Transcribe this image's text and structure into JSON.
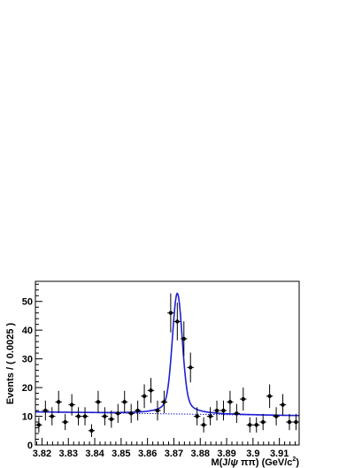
{
  "chart_data": {
    "type": "scatter",
    "title": "",
    "xlabel": "M(J/ψ ππ) (GeV/c²)",
    "xlabel_parts": {
      "prefix": "M(J/",
      "psi": "ψ",
      "pipi": " ππ) (GeV/c",
      "sup": "2",
      "suffix": ")"
    },
    "ylabel": "Events / ( 0.0025 )",
    "xlim": [
      3.8175,
      3.9175
    ],
    "ylim": [
      0,
      57
    ],
    "xticks": [
      3.82,
      3.83,
      3.84,
      3.85,
      3.86,
      3.87,
      3.88,
      3.89,
      3.9,
      3.91
    ],
    "xtick_labels": [
      "3.82",
      "3.83",
      "3.84",
      "3.85",
      "3.86",
      "3.87",
      "3.88",
      "3.89",
      "3.9",
      "3.91"
    ],
    "yticks": [
      0,
      10,
      20,
      30,
      40,
      50
    ],
    "ytick_labels": [
      "0",
      "10",
      "20",
      "30",
      "40",
      "50"
    ],
    "grid": false,
    "colors": {
      "data": "#000000",
      "fit": "#1f1fd6",
      "background": "#1f1fd6",
      "frame": "#000000"
    },
    "series": [
      {
        "kind": "data-points-with-errors",
        "x": [
          3.8188,
          3.8213,
          3.8238,
          3.8263,
          3.8288,
          3.8313,
          3.8338,
          3.8363,
          3.8388,
          3.8413,
          3.8438,
          3.8463,
          3.8488,
          3.8513,
          3.8538,
          3.8563,
          3.8588,
          3.8613,
          3.8638,
          3.8663,
          3.8688,
          3.8713,
          3.8738,
          3.8763,
          3.8788,
          3.8813,
          3.8838,
          3.8863,
          3.8888,
          3.8913,
          3.8938,
          3.8963,
          3.8988,
          3.9013,
          3.9038,
          3.9063,
          3.9088,
          3.9113,
          3.9138,
          3.9163
        ],
        "y": [
          7,
          12,
          10,
          15,
          8,
          14,
          10,
          10,
          5,
          15,
          10,
          9,
          11,
          15,
          11,
          12,
          17,
          19,
          12,
          15,
          46,
          43,
          37,
          27,
          10,
          7,
          10,
          12,
          12,
          15,
          11,
          16,
          7,
          7,
          8,
          17,
          10,
          14,
          8,
          8
        ]
      },
      {
        "kind": "fit-curve",
        "peak_mean": 3.8713,
        "peak_sigma": 0.0018,
        "peak_height": 42,
        "background_start": 11.5,
        "background_end": 10.2
      }
    ]
  }
}
